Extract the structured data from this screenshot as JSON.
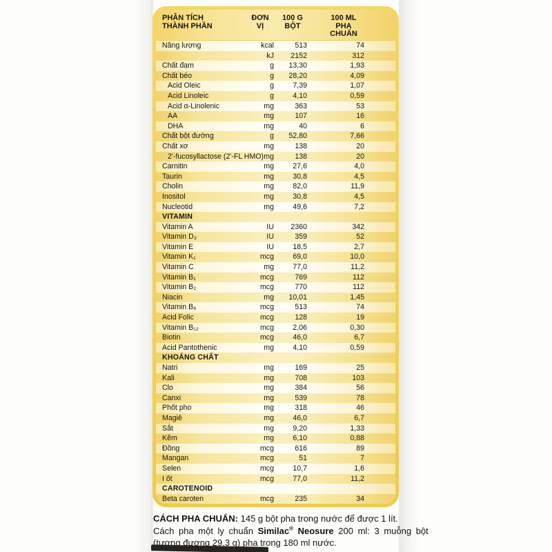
{
  "table": {
    "header": {
      "component": {
        "line1": "PHÂN TÍCH",
        "line2": "THÀNH PHẦN"
      },
      "unit": {
        "line1": "ĐƠN",
        "line2": "VỊ"
      },
      "per100g": {
        "line1": "100 G",
        "line2": "BỘT"
      },
      "per100ml": {
        "line1": "100 ML",
        "line2": "PHA CHUẨN"
      }
    },
    "rows": [
      {
        "name": "Năng lượng",
        "unit": "kcal",
        "g": "513",
        "ml": "74"
      },
      {
        "name": "",
        "unit": "kJ",
        "g": "2152",
        "ml": "312"
      },
      {
        "name": "Chất đạm",
        "unit": "g",
        "g": "13,30",
        "ml": "1,93"
      },
      {
        "name": "Chất béo",
        "unit": "g",
        "g": "28,20",
        "ml": "4,09"
      },
      {
        "name": "Acid Oleic",
        "unit": "g",
        "g": "7,39",
        "ml": "1,07",
        "indent": true
      },
      {
        "name": "Acid Linoleic",
        "unit": "g",
        "g": "4,10",
        "ml": "0,59",
        "indent": true
      },
      {
        "name": "Acid α-Linolenic",
        "unit": "mg",
        "g": "363",
        "ml": "53",
        "indent": true
      },
      {
        "name": "AA",
        "unit": "mg",
        "g": "107",
        "ml": "16",
        "indent": true
      },
      {
        "name": "DHA",
        "unit": "mg",
        "g": "40",
        "ml": "6",
        "indent": true
      },
      {
        "name": "Chất bột đường",
        "unit": "g",
        "g": "52,80",
        "ml": "7,66"
      },
      {
        "name": "Chất xơ",
        "unit": "mg",
        "g": "138",
        "ml": "20"
      },
      {
        "name": "2'-fucosyllactose (2'-FL HMO)",
        "unit": "mg",
        "g": "138",
        "ml": "20",
        "indent": true
      },
      {
        "name": "Carnitin",
        "unit": "mg",
        "g": "27,6",
        "ml": "4,0"
      },
      {
        "name": "Taurin",
        "unit": "mg",
        "g": "30,8",
        "ml": "4,5"
      },
      {
        "name": "Cholin",
        "unit": "mg",
        "g": "82,0",
        "ml": "11,9"
      },
      {
        "name": "Inositol",
        "unit": "mg",
        "g": "30,8",
        "ml": "4,5"
      },
      {
        "name": "Nucleotid",
        "unit": "mg",
        "g": "49,6",
        "ml": "7,2"
      },
      {
        "section": "VITAMIN"
      },
      {
        "name": "Vitamin A",
        "unit": "IU",
        "g": "2360",
        "ml": "342"
      },
      {
        "name": "Vitamin D₃",
        "unit": "IU",
        "g": "359",
        "ml": "52"
      },
      {
        "name": "Vitamin E",
        "unit": "IU",
        "g": "18,5",
        "ml": "2,7"
      },
      {
        "name": "Vitamin K₁",
        "unit": "mcg",
        "g": "69,0",
        "ml": "10,0"
      },
      {
        "name": "Vitamin C",
        "unit": "mg",
        "g": "77,0",
        "ml": "11,2"
      },
      {
        "name": "Vitamin B₁",
        "unit": "mcg",
        "g": "769",
        "ml": "112"
      },
      {
        "name": "Vitamin B₂",
        "unit": "mcg",
        "g": "770",
        "ml": "112"
      },
      {
        "name": "Niacin",
        "unit": "mg",
        "g": "10,01",
        "ml": "1,45"
      },
      {
        "name": "Vitamin B₆",
        "unit": "mcg",
        "g": "513",
        "ml": "74"
      },
      {
        "name": "Acid Folic",
        "unit": "mcg",
        "g": "128",
        "ml": "19"
      },
      {
        "name": "Vitamin B₁₂",
        "unit": "mcg",
        "g": "2,06",
        "ml": "0,30"
      },
      {
        "name": "Biotin",
        "unit": "mcg",
        "g": "46,0",
        "ml": "6,7"
      },
      {
        "name": "Acid Pantothenic",
        "unit": "mg",
        "g": "4,10",
        "ml": "0,59"
      },
      {
        "section": "KHOÁNG CHẤT"
      },
      {
        "name": "Natri",
        "unit": "mg",
        "g": "169",
        "ml": "25"
      },
      {
        "name": "Kali",
        "unit": "mg",
        "g": "708",
        "ml": "103"
      },
      {
        "name": "Clo",
        "unit": "mg",
        "g": "384",
        "ml": "56"
      },
      {
        "name": "Canxi",
        "unit": "mg",
        "g": "539",
        "ml": "78"
      },
      {
        "name": "Phốt pho",
        "unit": "mg",
        "g": "318",
        "ml": "46"
      },
      {
        "name": "Magiê",
        "unit": "mg",
        "g": "46,0",
        "ml": "6,7"
      },
      {
        "name": "Sắt",
        "unit": "mg",
        "g": "9,20",
        "ml": "1,33"
      },
      {
        "name": "Kẽm",
        "unit": "mg",
        "g": "6,10",
        "ml": "0,88"
      },
      {
        "name": "Đồng",
        "unit": "mcg",
        "g": "616",
        "ml": "89"
      },
      {
        "name": "Mangan",
        "unit": "mcg",
        "g": "51",
        "ml": "7"
      },
      {
        "name": "Selen",
        "unit": "mcg",
        "g": "10,7",
        "ml": "1,6"
      },
      {
        "name": "I ốt",
        "unit": "mcg",
        "g": "77,0",
        "ml": "11,2"
      },
      {
        "section": "CAROTENOID"
      },
      {
        "name": "Beta caroten",
        "unit": "mcg",
        "g": "235",
        "ml": "34"
      }
    ]
  },
  "footer": {
    "line1_bold": "CÁCH PHA CHUẨN:",
    "line1_rest": " 145 g bột pha trong nước để được 1 lít.",
    "line2_pre": "Cách pha một ly chuẩn ",
    "line2_brand": "Similac",
    "line2_reg": "®",
    "line2_brand2": " Neosure",
    "line2_post": " 200 ml: 3 muỗng bột",
    "line3": "(tương đương 29,3 g) pha trong 180 ml nước."
  },
  "colors": {
    "frame_yellow": "#f3d053",
    "stripe_dark": "#f7e59a",
    "stripe_light": "#fefdf3",
    "text": "#17160f"
  }
}
